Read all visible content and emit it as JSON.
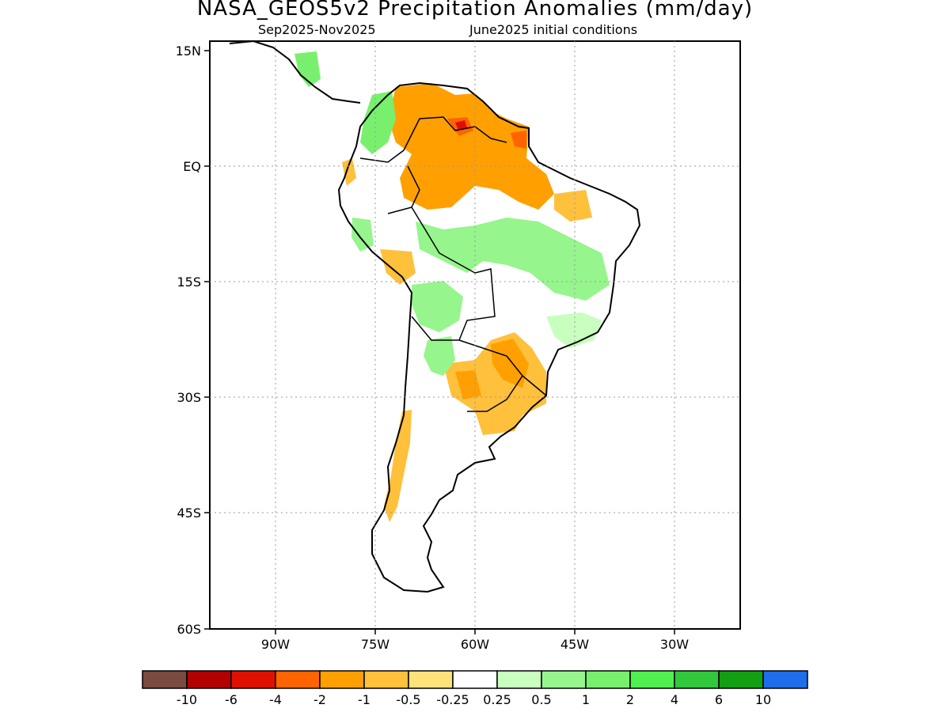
{
  "title": "NASA_GEOS5v2 Precipitation Anomalies (mm/day)",
  "subtitle_left": "Sep2025-Nov2025",
  "subtitle_right": "June2025 initial conditions",
  "map": {
    "lat_labels": [
      "15N",
      "EQ",
      "15S",
      "30S",
      "45S",
      "60S"
    ],
    "lon_labels": [
      "90W",
      "75W",
      "60W",
      "45W",
      "30W"
    ]
  },
  "colorbar": {
    "colors": [
      "#7a4b3f",
      "#b30000",
      "#e01000",
      "#ff6400",
      "#ffa000",
      "#ffc03c",
      "#ffe27a",
      "#ffffff",
      "#c8ffbe",
      "#96f58c",
      "#78f06e",
      "#50f050",
      "#32c83c",
      "#12a012",
      "#1e6eeb"
    ],
    "labels": [
      "-10",
      "-6",
      "-4",
      "-2",
      "-1",
      "-0.5",
      "-0.25",
      "0.25",
      "0.5",
      "1",
      "2",
      "4",
      "6",
      "10"
    ]
  }
}
